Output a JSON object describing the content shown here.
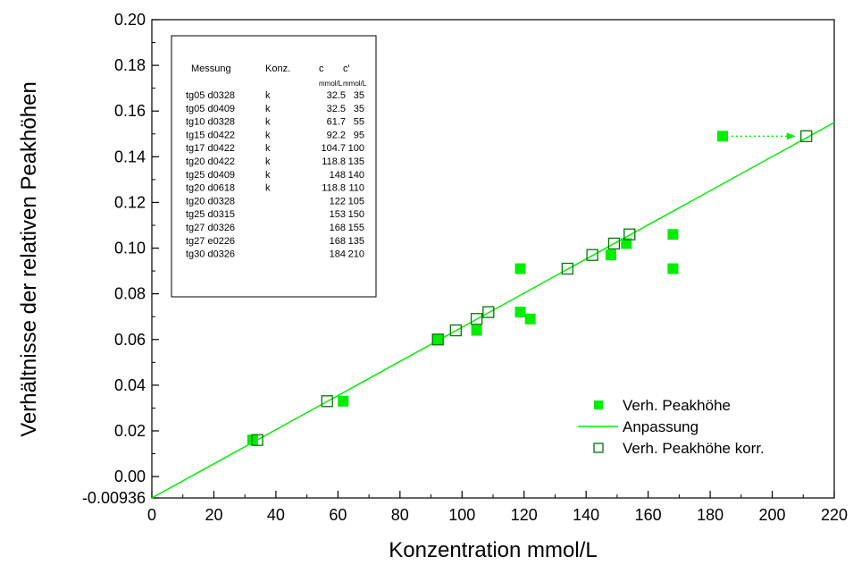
{
  "chart_data": {
    "type": "scatter",
    "xlabel": "Konzentration mmol/L",
    "ylabel": "Verhältnisse der relativen Peakhöhen",
    "xlim": [
      0,
      220
    ],
    "ylim": [
      -0.00936,
      0.2
    ],
    "x_ticks": [
      "0",
      "20",
      "40",
      "60",
      "80",
      "100",
      "120",
      "140",
      "160",
      "180",
      "200",
      "220"
    ],
    "y_ticks": [
      "-0.00936",
      "0.00",
      "0.02",
      "0.04",
      "0.06",
      "0.08",
      "0.10",
      "0.12",
      "0.14",
      "0.16",
      "0.18",
      "0.20"
    ],
    "grid": false,
    "legend_position": "bottom-right",
    "series": [
      {
        "name": "Verh. Peakhöhe",
        "marker": "filled-square",
        "color": "#00ee00",
        "points": [
          [
            32.5,
            0.016
          ],
          [
            61.7,
            0.033
          ],
          [
            92.2,
            0.06
          ],
          [
            104.7,
            0.064
          ],
          [
            118.8,
            0.072
          ],
          [
            118.8,
            0.091
          ],
          [
            122,
            0.069
          ],
          [
            148,
            0.097
          ],
          [
            153,
            0.102
          ],
          [
            168,
            0.106
          ],
          [
            168,
            0.091
          ],
          [
            184,
            0.149
          ]
        ]
      },
      {
        "name": "Anpassung",
        "marker": "line",
        "color": "#00ee00",
        "points": [
          [
            0,
            -0.00936
          ],
          [
            220,
            0.155
          ]
        ]
      },
      {
        "name": "Verh. Peakhöhe korr.",
        "marker": "open-square",
        "color": "#007700",
        "points": [
          [
            34,
            0.016
          ],
          [
            56.5,
            0.033
          ],
          [
            92.2,
            0.06
          ],
          [
            98,
            0.064
          ],
          [
            104.7,
            0.069
          ],
          [
            108.5,
            0.072
          ],
          [
            134,
            0.091
          ],
          [
            142,
            0.097
          ],
          [
            149,
            0.102
          ],
          [
            154,
            0.106
          ],
          [
            211,
            0.149
          ]
        ]
      }
    ],
    "annotation_arrow": {
      "from": [
        184,
        0.149
      ],
      "to": [
        211,
        0.149
      ],
      "style": "dotted",
      "color": "#00ee00"
    },
    "table": {
      "headers": [
        "Messung",
        "Konz.",
        "c",
        "c'"
      ],
      "units": [
        "",
        "",
        "mmol/L",
        "mmol/L"
      ],
      "rows": [
        [
          "tg05 d0328",
          "k",
          "32.5",
          "35"
        ],
        [
          "tg05 d0409",
          "k",
          "32.5",
          "35"
        ],
        [
          "tg10 d0328",
          "k",
          "61.7",
          "55"
        ],
        [
          "tg15 d0422",
          "k",
          "92.2",
          "95"
        ],
        [
          "tg17 d0422",
          "k",
          "104.7",
          "100"
        ],
        [
          "tg20 d0422",
          "k",
          "118.8",
          "135"
        ],
        [
          "tg25 d0409",
          "k",
          "148",
          "140"
        ],
        [
          "tg20 d0618",
          "k",
          "118.8",
          "110"
        ],
        [
          "tg20 d0328",
          "",
          "122",
          "105"
        ],
        [
          "tg25 d0315",
          "",
          "153",
          "150"
        ],
        [
          "tg27 d0326",
          "",
          "168",
          "155"
        ],
        [
          "tg27 e0226",
          "",
          "168",
          "135"
        ],
        [
          "tg30 d0326",
          "",
          "184",
          "210"
        ]
      ]
    }
  }
}
